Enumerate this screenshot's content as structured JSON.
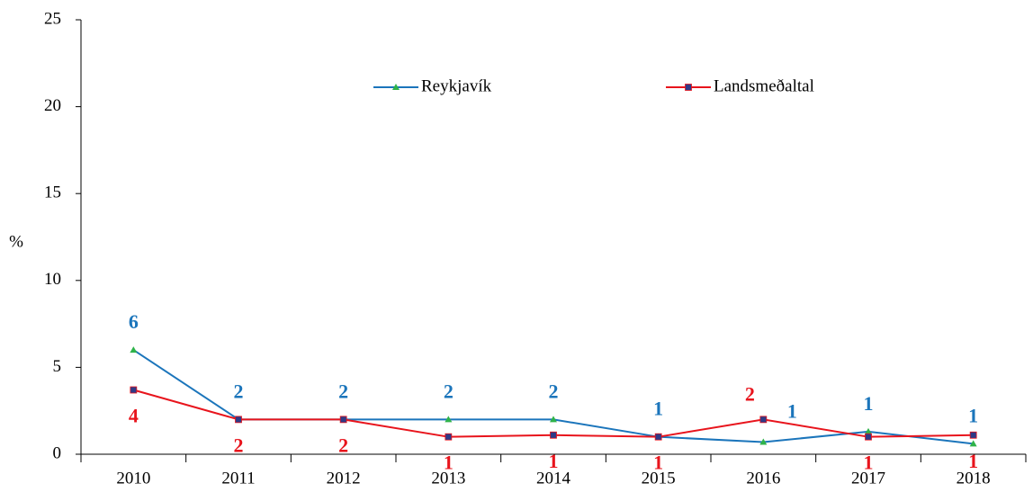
{
  "chart_data": {
    "type": "line",
    "y_label": "%",
    "categories": [
      "2010",
      "2011",
      "2012",
      "2013",
      "2014",
      "2015",
      "2016",
      "2017",
      "2018"
    ],
    "series": [
      {
        "name": "Reykjavík",
        "color": "#1b75bb",
        "marker_color": "#2fb34a",
        "marker": "triangle",
        "values": [
          6.0,
          2.0,
          2.0,
          2.0,
          2.0,
          1.0,
          0.7,
          1.3,
          0.6
        ],
        "value_labels": [
          "6",
          "2",
          "2",
          "2",
          "2",
          "1",
          "1",
          "1",
          "1"
        ]
      },
      {
        "name": "Landsmeðaltal",
        "color": "#e8141c",
        "marker_color": "#2e3a87",
        "marker": "square",
        "values": [
          3.7,
          2.0,
          2.0,
          1.0,
          1.1,
          1.0,
          2.0,
          1.0,
          1.1
        ],
        "value_labels": [
          "4",
          "2",
          "2",
          "1",
          "1",
          "1",
          "2",
          "1",
          "1"
        ]
      }
    ],
    "ylim": [
      0,
      25
    ],
    "yticks": [
      0,
      5,
      10,
      15,
      20,
      25
    ],
    "legend": "top"
  }
}
